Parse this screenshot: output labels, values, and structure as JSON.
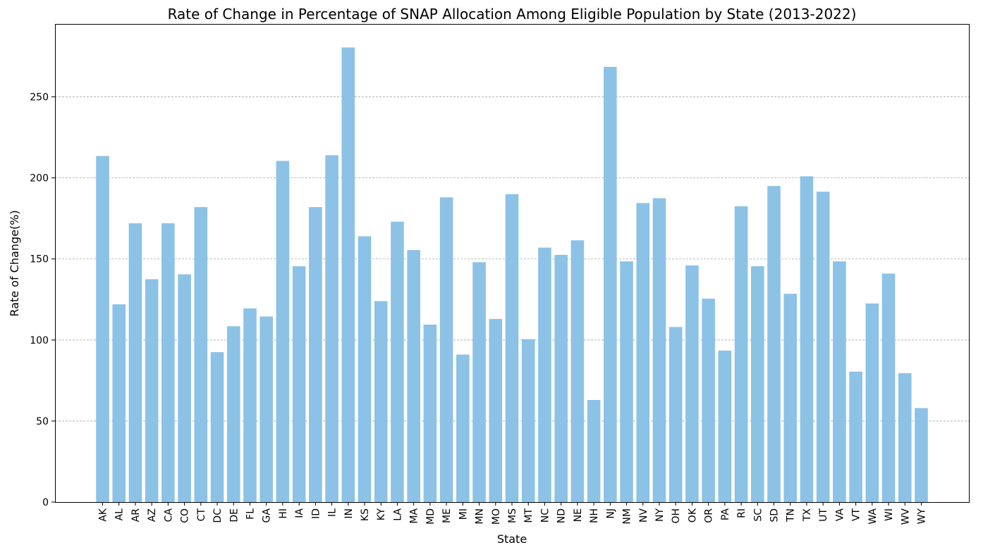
{
  "chart_data": {
    "type": "bar",
    "title": "Rate of Change in Percentage of SNAP Allocation Among Eligible Population by State (2013-2022)",
    "xlabel": "State",
    "ylabel": "Rate of Change(%)",
    "categories": [
      "AK",
      "AL",
      "AR",
      "AZ",
      "CA",
      "CO",
      "CT",
      "DC",
      "DE",
      "FL",
      "GA",
      "HI",
      "IA",
      "ID",
      "IL",
      "IN",
      "KS",
      "KY",
      "LA",
      "MA",
      "MD",
      "ME",
      "MI",
      "MN",
      "MO",
      "MS",
      "MT",
      "NC",
      "ND",
      "NE",
      "NH",
      "NJ",
      "NM",
      "NV",
      "NY",
      "OH",
      "OK",
      "OR",
      "PA",
      "RI",
      "SC",
      "SD",
      "TN",
      "TX",
      "UT",
      "VA",
      "VT",
      "WA",
      "WI",
      "WV",
      "WY"
    ],
    "values": [
      213.5,
      122,
      172,
      137.5,
      172,
      140.5,
      182,
      92.5,
      108.5,
      119.5,
      114.5,
      210.5,
      145.5,
      182,
      214,
      280.5,
      164,
      124,
      173,
      155.5,
      109.5,
      188,
      91,
      148,
      113,
      190,
      100.5,
      157,
      152.5,
      161.5,
      63,
      268.5,
      148.5,
      184.5,
      187.5,
      108,
      146,
      125.5,
      93.5,
      182.5,
      145.5,
      195,
      128.5,
      201,
      191.5,
      148.5,
      80.5,
      122.5,
      141,
      79.5,
      58
    ],
    "ylim": [
      0,
      295
    ],
    "yticks": [
      0,
      50,
      100,
      150,
      200,
      250
    ],
    "grid": "y-axis dashed",
    "colors": {
      "bar": "#8cc2e6"
    }
  }
}
